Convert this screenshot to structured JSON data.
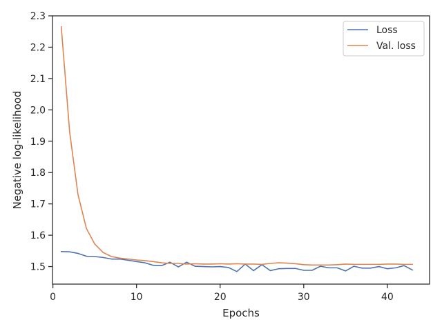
{
  "chart_data": {
    "type": "line",
    "xlabel": "Epochs",
    "ylabel": "Negative log-likelihood",
    "xlim": [
      -0.05,
      45.05
    ],
    "ylim": [
      1.444,
      2.3
    ],
    "xticks": [
      0,
      10,
      20,
      30,
      40
    ],
    "yticks": [
      1.5,
      1.6,
      1.7,
      1.8,
      1.9,
      2.0,
      2.1,
      2.2,
      2.3
    ],
    "xtick_labels": [
      "0",
      "10",
      "20",
      "30",
      "40"
    ],
    "ytick_labels": [
      "1.5",
      "1.6",
      "1.7",
      "1.8",
      "1.9",
      "2.0",
      "2.1",
      "2.2",
      "2.3"
    ],
    "grid": false,
    "legend_position": "top-right",
    "x": [
      1,
      2,
      3,
      4,
      5,
      6,
      7,
      8,
      9,
      10,
      11,
      12,
      13,
      14,
      15,
      16,
      17,
      18,
      19,
      20,
      21,
      22,
      23,
      24,
      25,
      26,
      27,
      28,
      29,
      30,
      31,
      32,
      33,
      34,
      35,
      36,
      37,
      38,
      39,
      40,
      41,
      42,
      43
    ],
    "series": [
      {
        "name": "Loss",
        "color": "#4c72b0",
        "values": [
          1.548,
          1.547,
          1.542,
          1.533,
          1.532,
          1.529,
          1.524,
          1.524,
          1.52,
          1.516,
          1.512,
          1.504,
          1.503,
          1.514,
          1.499,
          1.514,
          1.501,
          1.5,
          1.499,
          1.5,
          1.497,
          1.484,
          1.508,
          1.487,
          1.506,
          1.487,
          1.493,
          1.494,
          1.494,
          1.488,
          1.488,
          1.501,
          1.496,
          1.496,
          1.486,
          1.501,
          1.495,
          1.495,
          1.5,
          1.493,
          1.496,
          1.503,
          1.489
        ]
      },
      {
        "name": "Val. loss",
        "color": "#dd8452",
        "values": [
          2.265,
          1.93,
          1.73,
          1.622,
          1.572,
          1.545,
          1.532,
          1.527,
          1.524,
          1.521,
          1.519,
          1.516,
          1.512,
          1.51,
          1.51,
          1.508,
          1.509,
          1.508,
          1.508,
          1.509,
          1.508,
          1.509,
          1.508,
          1.508,
          1.507,
          1.51,
          1.512,
          1.511,
          1.509,
          1.506,
          1.505,
          1.505,
          1.505,
          1.506,
          1.508,
          1.507,
          1.507,
          1.507,
          1.507,
          1.508,
          1.508,
          1.507,
          1.507
        ]
      }
    ]
  }
}
